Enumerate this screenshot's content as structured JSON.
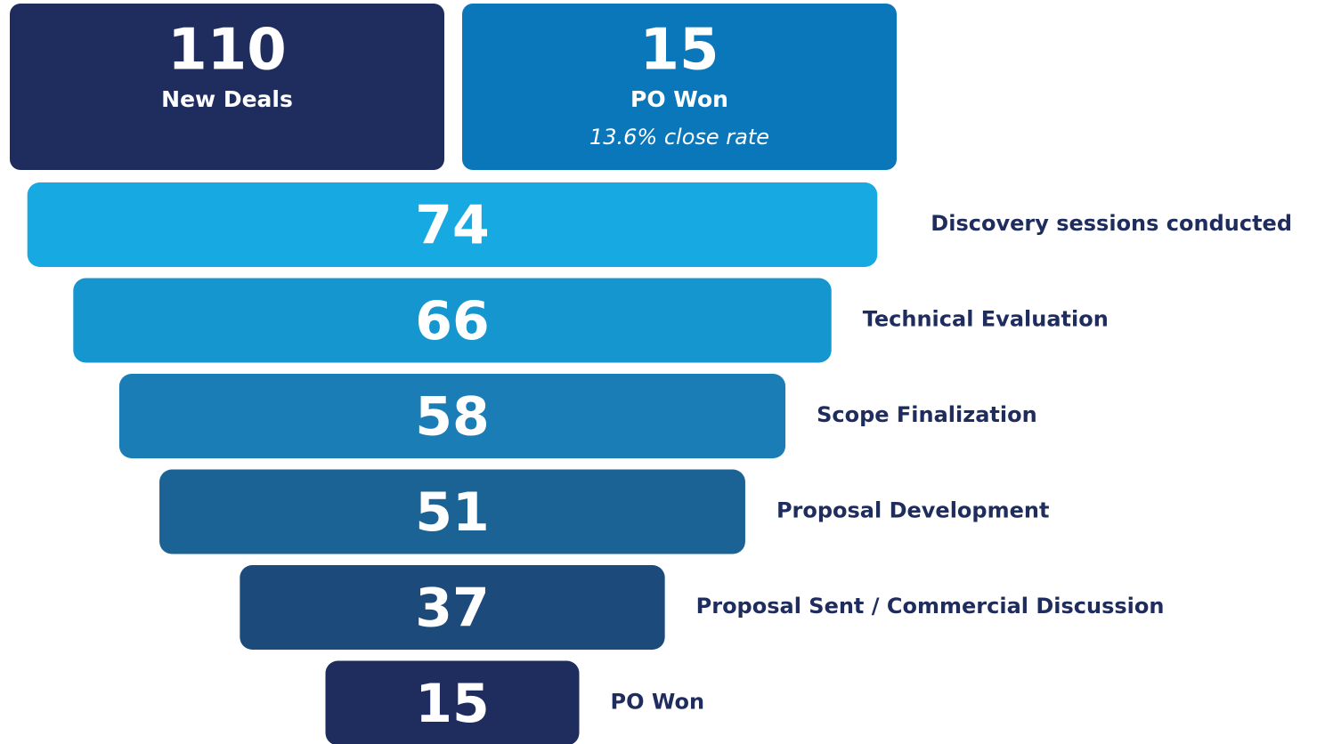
{
  "kpis": [
    {
      "value": 110,
      "label": "New Deals",
      "color": "#1f2d5e"
    },
    {
      "value": 15,
      "label": "PO Won",
      "note": "13.6% close rate",
      "color": "#0b77bb"
    }
  ],
  "chart_data": {
    "type": "funnel",
    "categories": [
      "Discovery sessions conducted",
      "Technical Evaluation",
      "Scope Finalization",
      "Proposal Development",
      "Proposal Sent / Commercial Discussion",
      "PO Won"
    ],
    "values": [
      74,
      66,
      58,
      51,
      37,
      15
    ],
    "colors": [
      "#17a9e1",
      "#1596cf",
      "#1a7db5",
      "#1b6394",
      "#1c4a7a",
      "#1e2d5e"
    ]
  }
}
